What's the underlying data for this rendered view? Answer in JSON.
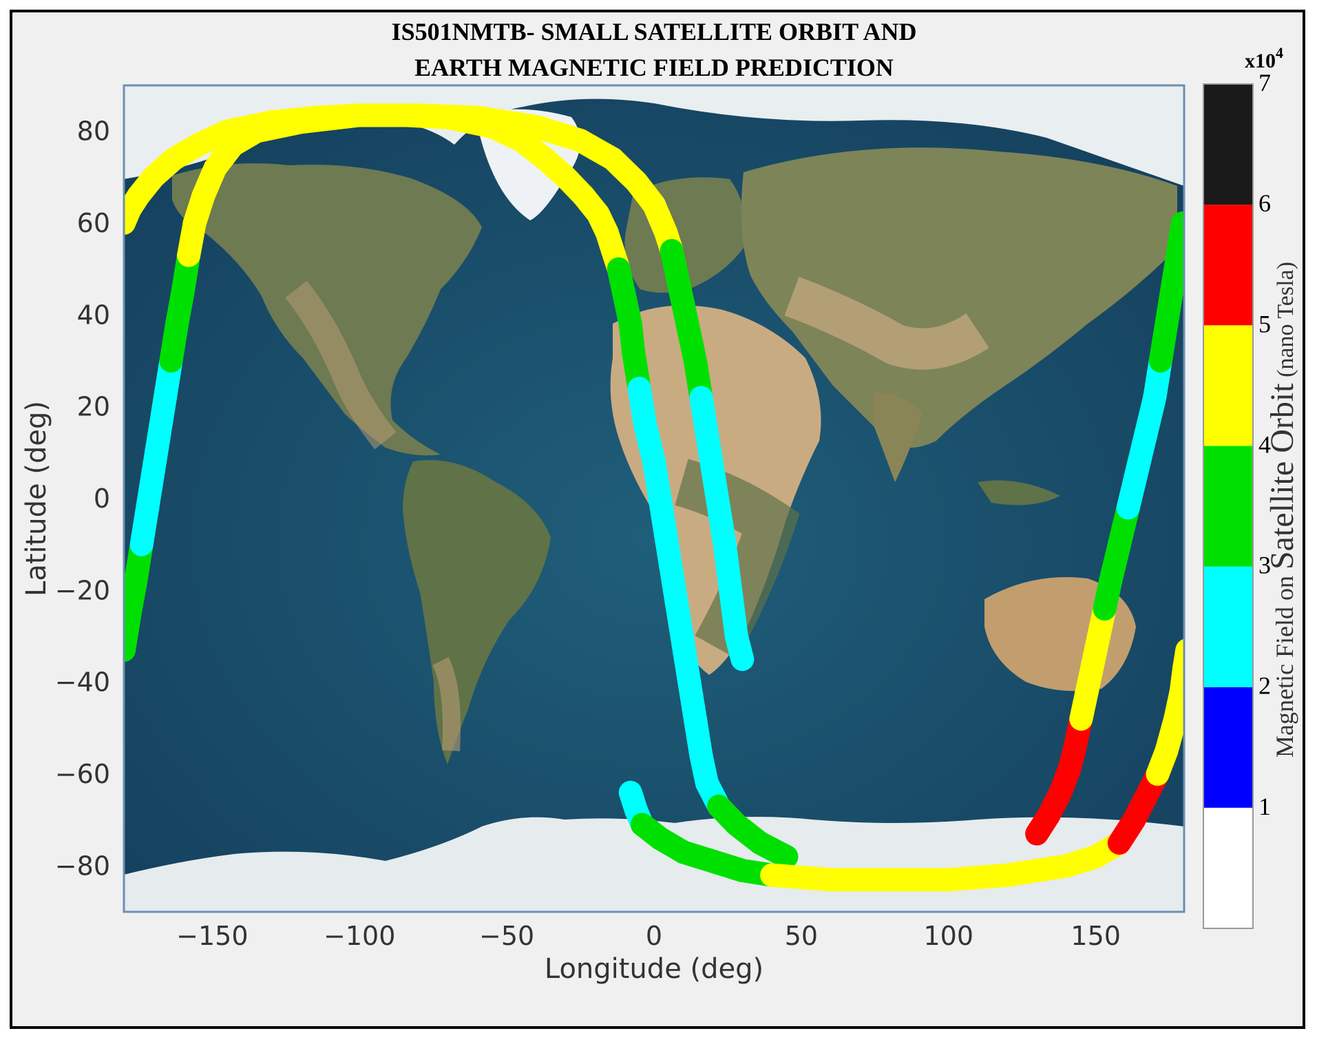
{
  "chart_data": {
    "type": "scatter",
    "title_lines": [
      "IS501NMTB- SMALL SATELLITE ORBIT AND",
      "EARTH MAGNETIC FIELD PREDICTION"
    ],
    "xlabel": "Longitude (deg)",
    "ylabel": "Latitude (deg)",
    "xlim": [
      -180,
      180
    ],
    "ylim": [
      -90,
      90
    ],
    "x_ticks": [
      -150,
      -100,
      -50,
      0,
      50,
      100,
      150
    ],
    "x_tick_labels": [
      "−150",
      "−100",
      "−50",
      "0",
      "50",
      "100",
      "150"
    ],
    "y_ticks": [
      80,
      60,
      40,
      20,
      0,
      -20,
      -40,
      -60,
      -80
    ],
    "y_tick_labels": [
      "80",
      "60",
      "40",
      "20",
      "0",
      "−20",
      "−40",
      "−60",
      "−80"
    ],
    "background": "world satellite map",
    "grid": false,
    "colorbar": {
      "label_small_1": "Magnetic Field on ",
      "label_large": "Satellite Orbit",
      "label_small_2": " (nano Tesla)",
      "exponent_base": "x10",
      "exponent_power": "4",
      "ticks": [
        "1",
        "2",
        "3",
        "4",
        "5",
        "6",
        "7"
      ],
      "bands": [
        {
          "from": 0,
          "to": 1,
          "color": "#ffffff"
        },
        {
          "from": 1,
          "to": 2,
          "color": "#0000ff"
        },
        {
          "from": 2,
          "to": 3,
          "color": "#00ffff"
        },
        {
          "from": 3,
          "to": 4,
          "color": "#00e000"
        },
        {
          "from": 4,
          "to": 5,
          "color": "#ffff00"
        },
        {
          "from": 5,
          "to": 6,
          "color": "#ff0000"
        },
        {
          "from": 6,
          "to": 7,
          "color": "#1a1a1a"
        }
      ]
    },
    "series": [
      {
        "points": [
          [
            -180,
            60
          ],
          [
            -178,
            63
          ],
          [
            -175,
            66
          ],
          [
            -170,
            70
          ],
          [
            -163,
            74
          ],
          [
            -155,
            77
          ],
          [
            -145,
            80
          ],
          [
            -130,
            82
          ],
          [
            -115,
            83
          ],
          [
            -100,
            83.5
          ],
          [
            -85,
            83.5
          ],
          [
            -70,
            83
          ],
          [
            -55,
            81
          ],
          [
            -45,
            78
          ],
          [
            -37,
            74
          ],
          [
            -30,
            70
          ],
          [
            -24,
            66
          ],
          [
            -19,
            62
          ],
          [
            -16,
            58
          ],
          [
            -14,
            54
          ],
          [
            -12,
            50
          ],
          [
            -10,
            44
          ],
          [
            -8,
            38
          ],
          [
            -7,
            32
          ],
          [
            -5,
            24
          ],
          [
            -3,
            16
          ],
          [
            0,
            8
          ],
          [
            2,
            0
          ],
          [
            4,
            -8
          ],
          [
            6,
            -16
          ],
          [
            8,
            -24
          ],
          [
            10,
            -32
          ],
          [
            12,
            -40
          ],
          [
            14,
            -48
          ],
          [
            16,
            -56
          ],
          [
            18,
            -62
          ],
          [
            22,
            -67
          ],
          [
            28,
            -71
          ],
          [
            36,
            -75
          ],
          [
            45,
            -78
          ]
        ],
        "values": [
          4.5,
          4.5,
          4.5,
          4.5,
          4.5,
          4.5,
          4.5,
          4.5,
          4.5,
          4.5,
          4.5,
          4.5,
          4.5,
          4.5,
          4.5,
          4.5,
          4.5,
          4.5,
          4.5,
          4.5,
          3.5,
          3.5,
          3.5,
          3.5,
          2.5,
          2.5,
          2.5,
          2.5,
          2.5,
          2.5,
          2.5,
          2.5,
          2.5,
          2.5,
          2.5,
          2.5,
          3.5,
          3.5,
          3.5,
          3.5
        ]
      },
      {
        "points": [
          [
            -180,
            -33
          ],
          [
            -178,
            -25
          ],
          [
            -176,
            -18
          ],
          [
            -174,
            -10
          ],
          [
            -172,
            -2
          ],
          [
            -170,
            6
          ],
          [
            -168,
            14
          ],
          [
            -166,
            22
          ],
          [
            -164,
            30
          ],
          [
            -162,
            38
          ],
          [
            -160,
            45
          ],
          [
            -158,
            53
          ],
          [
            -156,
            60
          ],
          [
            -153,
            66
          ],
          [
            -149,
            72
          ],
          [
            -143,
            77
          ],
          [
            -135,
            80
          ],
          [
            -120,
            82
          ],
          [
            -100,
            83.5
          ],
          [
            -80,
            83.5
          ],
          [
            -60,
            83
          ],
          [
            -40,
            81
          ],
          [
            -25,
            78
          ],
          [
            -14,
            74
          ],
          [
            -6,
            69
          ],
          [
            0,
            64
          ],
          [
            4,
            58
          ],
          [
            6,
            54
          ],
          [
            8,
            48
          ],
          [
            10,
            42
          ],
          [
            12,
            36
          ],
          [
            14,
            30
          ],
          [
            16,
            22
          ],
          [
            18,
            14
          ],
          [
            20,
            6
          ],
          [
            22,
            -2
          ],
          [
            24,
            -10
          ],
          [
            26,
            -20
          ],
          [
            28,
            -30
          ],
          [
            30,
            -35
          ]
        ],
        "values": [
          3.5,
          3.5,
          3.5,
          2.5,
          2.5,
          2.5,
          2.5,
          2.5,
          3.5,
          3.5,
          3.5,
          4.5,
          4.5,
          4.5,
          4.5,
          4.5,
          4.5,
          4.5,
          4.5,
          4.5,
          4.5,
          4.5,
          4.5,
          4.5,
          4.5,
          4.5,
          4.5,
          3.5,
          3.5,
          3.5,
          3.5,
          3.5,
          2.5,
          2.5,
          2.5,
          2.5,
          2.5,
          2.5,
          2.5,
          2.5
        ]
      },
      {
        "points": [
          [
            -8,
            -64
          ],
          [
            -6,
            -68
          ],
          [
            -4,
            -71
          ],
          [
            2,
            -74
          ],
          [
            10,
            -77
          ],
          [
            20,
            -79
          ],
          [
            30,
            -81
          ],
          [
            40,
            -82
          ],
          [
            60,
            -83
          ],
          [
            80,
            -83
          ],
          [
            100,
            -83
          ],
          [
            120,
            -82
          ],
          [
            140,
            -80
          ],
          [
            150,
            -78
          ],
          [
            158,
            -75
          ],
          [
            163,
            -70
          ],
          [
            167,
            -65
          ],
          [
            171,
            -60
          ],
          [
            174,
            -55
          ],
          [
            177,
            -48
          ],
          [
            179,
            -42
          ],
          [
            180,
            -37
          ],
          [
            181,
            -33
          ]
        ],
        "values": [
          2.5,
          2.5,
          3.5,
          3.5,
          3.5,
          3.5,
          3.5,
          4.5,
          4.5,
          4.5,
          4.5,
          4.5,
          4.5,
          4.5,
          5.5,
          5.5,
          5.5,
          4.5,
          4.5,
          4.5,
          4.5,
          4.5,
          4.5
        ]
      },
      {
        "points": [
          [
            130,
            -73
          ],
          [
            134,
            -69
          ],
          [
            138,
            -64
          ],
          [
            141,
            -59
          ],
          [
            143,
            -54
          ],
          [
            145,
            -48
          ],
          [
            147,
            -42
          ],
          [
            149,
            -36
          ],
          [
            151,
            -30
          ],
          [
            153,
            -24
          ],
          [
            155,
            -18
          ],
          [
            158,
            -10
          ],
          [
            161,
            -2
          ],
          [
            164,
            6
          ],
          [
            167,
            14
          ],
          [
            170,
            22
          ],
          [
            172,
            30
          ],
          [
            174,
            38
          ],
          [
            176,
            46
          ],
          [
            178,
            54
          ],
          [
            179.5,
            60
          ]
        ],
        "values": [
          5.5,
          5.5,
          5.5,
          5.5,
          5.5,
          4.5,
          4.5,
          4.5,
          4.5,
          3.5,
          3.5,
          3.5,
          2.5,
          2.5,
          2.5,
          2.5,
          3.5,
          3.5,
          3.5,
          3.5,
          4.5
        ]
      }
    ]
  }
}
